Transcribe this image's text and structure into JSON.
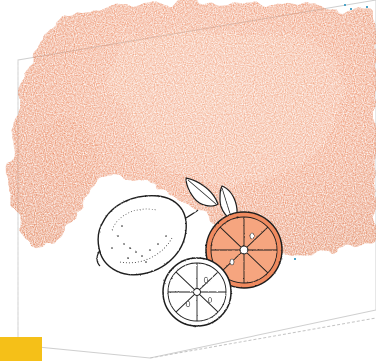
{
  "image": {
    "description_colors": {
      "watercolor_primary": "#ec8a62",
      "watercolor_light": "#f2a27f",
      "watercolor_dark": "#d97048",
      "ink": "#1e1e1e",
      "accent_yellow": "#f5c018",
      "paper_border": "#c9c9c9"
    },
    "icons": {
      "lemon": "lemon-illustration",
      "orange_half_large": "orange-slice-illustration",
      "orange_half_small": "lime-slice-illustration",
      "leaves": "leaf-illustration"
    }
  }
}
